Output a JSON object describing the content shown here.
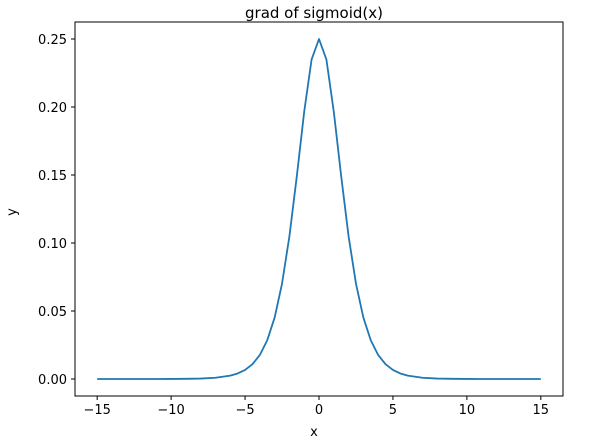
{
  "chart_data": {
    "type": "line",
    "title": "grad of sigmoid(x)",
    "xlabel": "x",
    "ylabel": "y",
    "xlim": [
      -16.5,
      16.5
    ],
    "ylim": [
      -0.0125,
      0.2625
    ],
    "grid": false,
    "xticks": [
      -15,
      -10,
      -5,
      0,
      5,
      10,
      15
    ],
    "xtick_labels": [
      "−15",
      "−10",
      "−5",
      "0",
      "5",
      "10",
      "15"
    ],
    "yticks": [
      0.0,
      0.05,
      0.1,
      0.15,
      0.2,
      0.25
    ],
    "ytick_labels": [
      "0.00",
      "0.05",
      "0.10",
      "0.15",
      "0.20",
      "0.25"
    ],
    "series": [
      {
        "color": "#1f77b4",
        "x": [
          -15,
          -14,
          -13,
          -12,
          -11,
          -10,
          -9,
          -8,
          -7,
          -6,
          -5.5,
          -5,
          -4.5,
          -4,
          -3.5,
          -3,
          -2.5,
          -2,
          -1.5,
          -1,
          -0.5,
          0,
          0.5,
          1,
          1.5,
          2,
          2.5,
          3,
          3.5,
          4,
          4.5,
          5,
          5.5,
          6,
          7,
          8,
          9,
          10,
          11,
          12,
          13,
          14,
          15
        ],
        "y": [
          3e-07,
          8e-07,
          2.3e-06,
          6.1e-06,
          1.67e-05,
          4.54e-05,
          0.0001234,
          0.0003352,
          0.0009102,
          0.0024665,
          0.0040531,
          0.0066481,
          0.0108666,
          0.0176627,
          0.0284842,
          0.0451767,
          0.0701037,
          0.1049936,
          0.1491465,
          0.1966119,
          0.2350037,
          0.25,
          0.2350037,
          0.1966119,
          0.1491465,
          0.1049936,
          0.0701037,
          0.0451767,
          0.0284842,
          0.0176627,
          0.0108666,
          0.0066481,
          0.0040531,
          0.0024665,
          0.0009102,
          0.0003352,
          0.0001234,
          4.54e-05,
          1.67e-05,
          6.1e-06,
          2.3e-06,
          8e-07,
          3e-07
        ]
      }
    ]
  }
}
